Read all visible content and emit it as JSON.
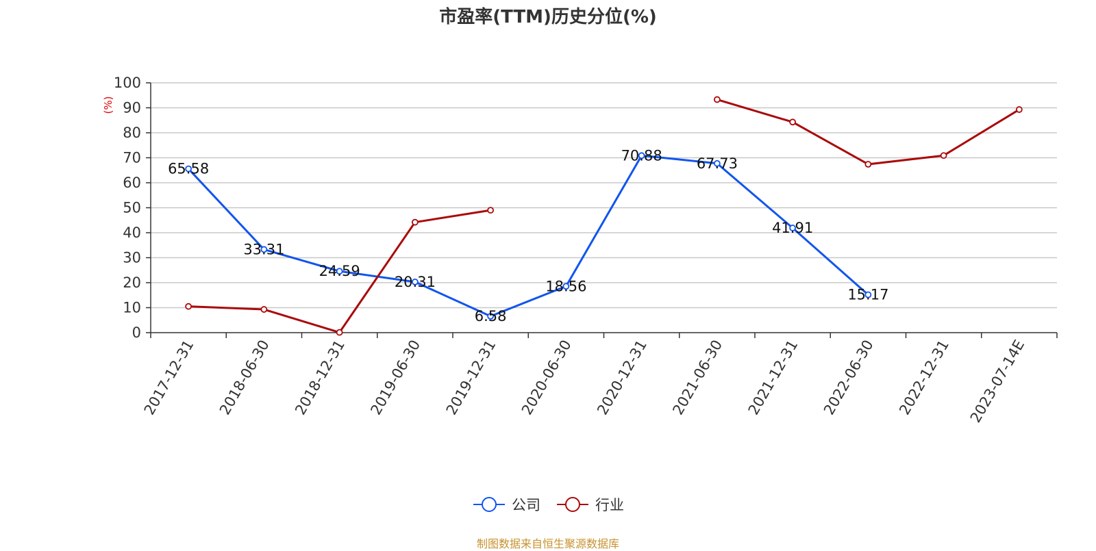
{
  "chart_data": {
    "type": "line",
    "title": "市盈率(TTM)历史分位(%)",
    "ylabel": "(%)",
    "xlabel": "",
    "ylim": [
      0,
      100
    ],
    "yticks": [
      0,
      10,
      20,
      30,
      40,
      50,
      60,
      70,
      80,
      90,
      100
    ],
    "categories": [
      "2017-12-31",
      "2018-06-30",
      "2018-12-31",
      "2019-06-30",
      "2019-12-31",
      "2020-06-30",
      "2020-12-31",
      "2021-06-30",
      "2021-12-31",
      "2022-06-30",
      "2022-12-31",
      "2023-07-14E"
    ],
    "grid": true,
    "legend_position": "bottom",
    "series": [
      {
        "name": "公司",
        "color": "#1155ee",
        "values": [
          65.58,
          33.31,
          24.59,
          20.31,
          6.58,
          18.56,
          70.88,
          67.73,
          41.91,
          15.17,
          null,
          null
        ],
        "show_labels": true
      },
      {
        "name": "行业",
        "color": "#aa0a0a",
        "values": [
          10.5,
          9.3,
          0.1,
          44.2,
          49.0,
          null,
          null,
          93.3,
          84.3,
          67.4,
          70.9,
          89.3
        ],
        "show_labels": false
      }
    ]
  },
  "source": "制图数据来自恒生聚源数据库"
}
